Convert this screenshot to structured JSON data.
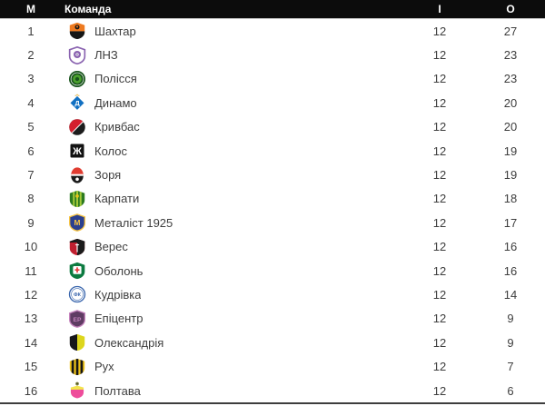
{
  "colors": {
    "header_bg": "#0c0c0c",
    "header_text": "#ffffff",
    "row_text": "#3e3e3e",
    "header_border": "#c9c9c9",
    "bottom_border": "#3d3d3d",
    "page_bg": "#ffffff"
  },
  "table": {
    "headers": {
      "place": "М",
      "team": "Команда",
      "played": "І",
      "points": "О"
    },
    "rows": [
      {
        "place": 1,
        "team": "Шахтар",
        "played": 12,
        "points": 27,
        "logo": {
          "name": "shakhtar-logo-icon",
          "kind": "shield-split-h",
          "colors": [
            "#ee7a20",
            "#161616"
          ]
        }
      },
      {
        "place": 2,
        "team": "ЛНЗ",
        "played": 12,
        "points": 23,
        "logo": {
          "name": "lnz-logo-icon",
          "kind": "shield-ring",
          "colors": [
            "#8a63b0",
            "#5b3d85"
          ]
        }
      },
      {
        "place": 3,
        "team": "Полісся",
        "played": 12,
        "points": 23,
        "logo": {
          "name": "polissya-logo-icon",
          "kind": "circle-emblem",
          "colors": [
            "#17531b",
            "#4ca12e"
          ]
        }
      },
      {
        "place": 4,
        "team": "Динамо",
        "played": 12,
        "points": 20,
        "logo": {
          "name": "dynamo-logo-icon",
          "kind": "diamond-letter",
          "colors": [
            "#1170c2",
            "#ffffff"
          ],
          "letter": "Д"
        }
      },
      {
        "place": 5,
        "team": "Кривбас",
        "played": 12,
        "points": 20,
        "logo": {
          "name": "kryvbas-logo-icon",
          "kind": "circle-diagonal",
          "colors": [
            "#d51f2e",
            "#1c1c1c"
          ]
        }
      },
      {
        "place": 6,
        "team": "Колос",
        "played": 12,
        "points": 19,
        "logo": {
          "name": "kolos-logo-icon",
          "kind": "square-letter",
          "colors": [
            "#121212",
            "#ffffff"
          ],
          "letter": "Ж"
        }
      },
      {
        "place": 7,
        "team": "Зоря",
        "played": 12,
        "points": 19,
        "logo": {
          "name": "zorya-logo-icon",
          "kind": "oval-split",
          "colors": [
            "#e03c31",
            "#1a1a1a"
          ]
        }
      },
      {
        "place": 8,
        "team": "Карпати",
        "played": 12,
        "points": 18,
        "logo": {
          "name": "karpaty-logo-icon",
          "kind": "shield-stripes",
          "colors": [
            "#2c7a1f",
            "#a3c93a",
            "#e8c51c"
          ]
        }
      },
      {
        "place": 9,
        "team": "Металіст 1925",
        "played": 12,
        "points": 17,
        "logo": {
          "name": "metalist-logo-icon",
          "kind": "shield-letter",
          "colors": [
            "#2a3f8f",
            "#f6c445"
          ],
          "letter": "М"
        }
      },
      {
        "place": 10,
        "team": "Верес",
        "played": 12,
        "points": 16,
        "logo": {
          "name": "veres-logo-icon",
          "kind": "shield-split-v-chief",
          "colors": [
            "#c01f2f",
            "#1b1b1b"
          ]
        }
      },
      {
        "place": 11,
        "team": "Оболонь",
        "played": 12,
        "points": 16,
        "logo": {
          "name": "obolon-logo-icon",
          "kind": "shield-inner",
          "colors": [
            "#0c7a40",
            "#e23b3b"
          ]
        }
      },
      {
        "place": 12,
        "team": "Кудрівка",
        "played": 12,
        "points": 14,
        "logo": {
          "name": "kudrivka-logo-icon",
          "kind": "circle-ring-letter",
          "colors": [
            "#3a66ad",
            "#ffffff"
          ],
          "letter": "ФК"
        }
      },
      {
        "place": 13,
        "team": "Епіцентр",
        "played": 12,
        "points": 9,
        "logo": {
          "name": "epitsentr-logo-icon",
          "kind": "shield-letter",
          "colors": [
            "#5f3c63",
            "#c583bd"
          ],
          "letter": "ЕР"
        }
      },
      {
        "place": 14,
        "team": "Олександрія",
        "played": 12,
        "points": 9,
        "logo": {
          "name": "oleksandriya-logo-icon",
          "kind": "shield-split-v",
          "colors": [
            "#17171a",
            "#ddd61d"
          ]
        }
      },
      {
        "place": 15,
        "team": "Рух",
        "played": 12,
        "points": 7,
        "logo": {
          "name": "rukh-logo-icon",
          "kind": "shield-vstripes",
          "colors": [
            "#f0c419",
            "#151515"
          ]
        }
      },
      {
        "place": 16,
        "team": "Полтава",
        "played": 12,
        "points": 6,
        "logo": {
          "name": "poltava-logo-icon",
          "kind": "shield-chief-ball",
          "colors": [
            "#ee4d9b",
            "#f2e34d",
            "#777b3a"
          ]
        }
      }
    ]
  }
}
